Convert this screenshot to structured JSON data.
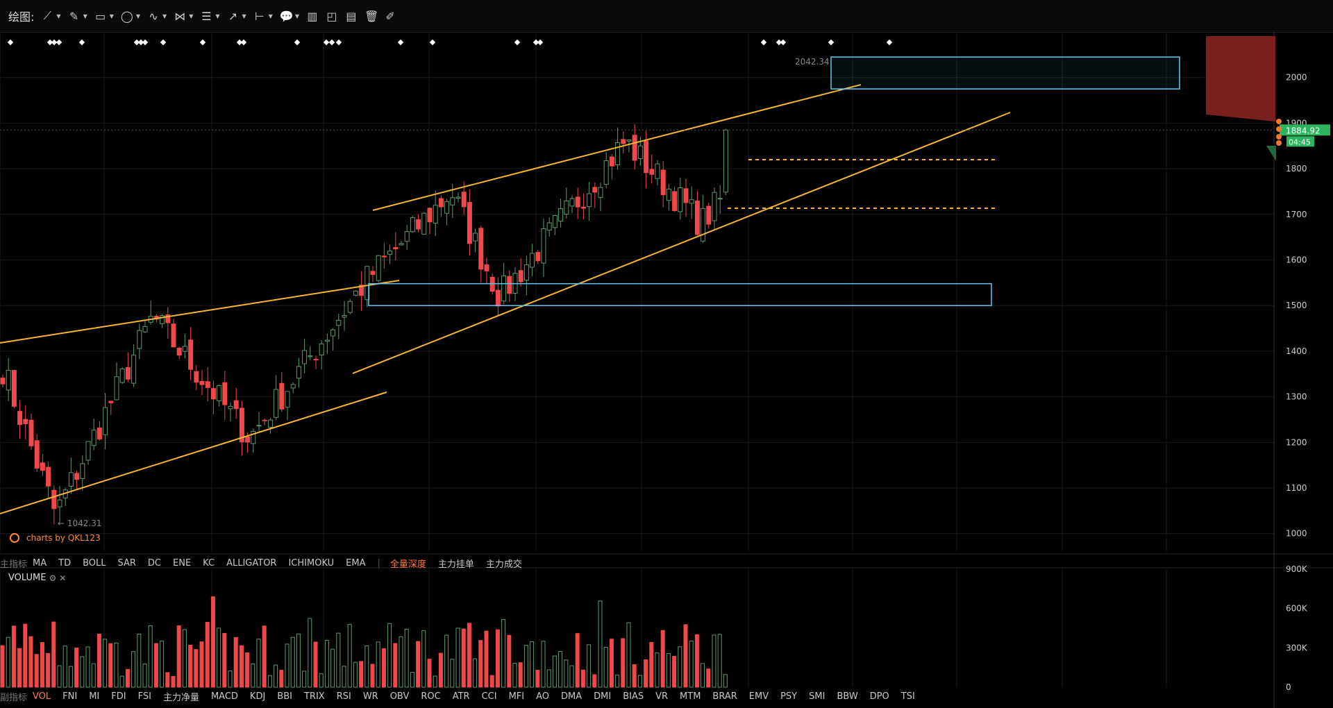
{
  "toolbar": {
    "label": "绘图:",
    "tools": [
      {
        "icon": "line-tool-icon",
        "glyph": "⟋",
        "caret": true
      },
      {
        "icon": "pen-tool-icon",
        "glyph": "✎",
        "caret": true
      },
      {
        "icon": "rectangle-tool-icon",
        "glyph": "▭",
        "caret": true
      },
      {
        "icon": "ellipse-tool-icon",
        "glyph": "◯",
        "caret": true
      },
      {
        "icon": "wave-tool-icon",
        "glyph": "∿",
        "caret": true
      },
      {
        "icon": "pattern-tool-icon",
        "glyph": "⋈",
        "caret": true
      },
      {
        "icon": "fibonacci-tool-icon",
        "glyph": "☰",
        "caret": true
      },
      {
        "icon": "arrow-tool-icon",
        "glyph": "↗",
        "caret": true
      },
      {
        "icon": "measure-tool-icon",
        "glyph": "⊢",
        "caret": true
      },
      {
        "icon": "comment-tool-icon",
        "glyph": "💬",
        "caret": true
      },
      {
        "icon": "bar-chart-icon",
        "glyph": "▥",
        "caret": false
      },
      {
        "icon": "line-chart-icon",
        "glyph": "◰",
        "caret": false
      },
      {
        "icon": "column-chart-icon",
        "glyph": "▤",
        "caret": false
      },
      {
        "icon": "trash-icon",
        "glyph": "🗑",
        "caret": false
      },
      {
        "icon": "brush-icon",
        "glyph": "✐",
        "caret": false
      }
    ]
  },
  "price_axis": {
    "ticks": [
      "2000",
      "1900",
      "1800",
      "1700",
      "1600",
      "1500",
      "1400",
      "1300",
      "1200",
      "1100",
      "1000"
    ]
  },
  "volume_axis": {
    "ticks": [
      "900K",
      "600K",
      "300K",
      "0"
    ]
  },
  "annotations": {
    "high_label": "2042.34",
    "low_label": "← 1042.31",
    "current_price": "1884.92",
    "countdown": "04:45"
  },
  "watermark": "charts by QKL123",
  "main_indicators": {
    "lead": "主指标",
    "items": [
      "MA",
      "TD",
      "BOLL",
      "SAR",
      "DC",
      "ENE",
      "KC",
      "ALLIGATOR",
      "ICHIMOKU",
      "EMA"
    ],
    "sep": "|",
    "extra": [
      "全量深度",
      "主力挂单",
      "主力成交"
    ]
  },
  "volume_header": {
    "title": "VOLUME",
    "gear": "⚙",
    "close": "✕"
  },
  "sub_indicators": {
    "lead": "副指标",
    "items": [
      "VOL",
      "FNI",
      "MI",
      "FDI",
      "FSI",
      "主力净量",
      "MACD",
      "KDJ",
      "BBI",
      "TRIX",
      "RSI",
      "WR",
      "OBV",
      "ROC",
      "ATR",
      "CCI",
      "MFI",
      "AO",
      "DMA",
      "DMI",
      "BIAS",
      "VR",
      "MTM",
      "BRAR",
      "EMV",
      "PSY",
      "SMI",
      "BBW",
      "DPO",
      "TSI"
    ]
  },
  "colors": {
    "up": "#5e9a6c",
    "down": "#f04848",
    "trendline": "#f5b731",
    "zone": "#5ec8f2",
    "price_tag": "#2db461",
    "red_zone": "#7a1f1f",
    "grid": "#1a1a1a"
  },
  "chart_data": {
    "type": "candlestick",
    "ylim": [
      960,
      2100
    ],
    "volume_ylim": [
      0,
      900000
    ],
    "key_points": [
      {
        "label": "start",
        "close": 1380
      },
      {
        "label": "low",
        "value": 1042.31
      },
      {
        "label": "range_top",
        "value": 1475
      },
      {
        "label": "range_bottom",
        "value": 1210
      },
      {
        "label": "breakout",
        "value": 1560
      },
      {
        "label": "peak_2",
        "value": 1750
      },
      {
        "label": "pullback",
        "value": 1520
      },
      {
        "label": "rally",
        "value": 1860
      },
      {
        "label": "dip",
        "value": 1680
      },
      {
        "label": "high",
        "value": 2042.34
      },
      {
        "label": "drop",
        "value": 1800
      },
      {
        "label": "last",
        "value": 1884.92
      }
    ],
    "zones": [
      {
        "from": 1975,
        "to": 2045
      },
      {
        "from": 1500,
        "to": 1548
      }
    ],
    "dashed_levels": [
      1830,
      1725
    ],
    "current_price": 1884.92
  }
}
